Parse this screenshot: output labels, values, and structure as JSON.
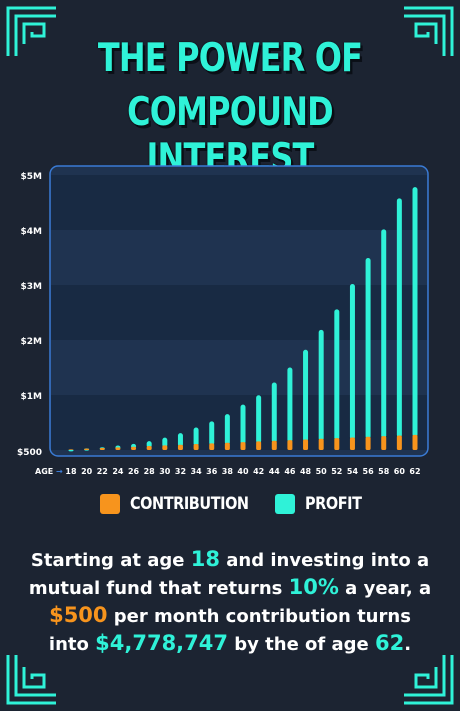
{
  "title": {
    "line1": "THE POWER OF",
    "line2": "COMPOUND INTEREST"
  },
  "colors": {
    "background": "#1c2432",
    "teal": "#2ff2d8",
    "orange": "#f7941d",
    "plot_bg": "#1f3350",
    "plot_bg_alt": "#182a43",
    "border": "#3a7bd5"
  },
  "chart_data": {
    "type": "bar",
    "stacked": true,
    "x_axis_label": "AGE",
    "x_axis_arrow": "→",
    "categories": [
      "18",
      "20",
      "22",
      "24",
      "26",
      "28",
      "30",
      "32",
      "34",
      "36",
      "38",
      "40",
      "42",
      "44",
      "46",
      "48",
      "50",
      "52",
      "54",
      "56",
      "58",
      "60",
      "62"
    ],
    "series": [
      {
        "name": "CONTRIBUTION",
        "color": "#f7941d",
        "values": [
          12000,
          24000,
          36000,
          48000,
          60000,
          72000,
          84000,
          96000,
          108000,
          120000,
          132000,
          144000,
          156000,
          168000,
          180000,
          192000,
          204000,
          216000,
          228000,
          240000,
          252000,
          264000,
          276000
        ]
      },
      {
        "name": "PROFIT",
        "color": "#2ff2d8",
        "values": [
          500,
          5000,
          15000,
          34000,
          52000,
          90000,
          140000,
          210000,
          300000,
          400000,
          520000,
          680000,
          840000,
          1060000,
          1320000,
          1630000,
          1980000,
          2340000,
          2790000,
          3250000,
          3760000,
          4310000,
          4502747
        ]
      }
    ],
    "y_ticks": [
      {
        "value": 500,
        "label": "$500"
      },
      {
        "value": 1000000,
        "label": "$1M"
      },
      {
        "value": 2000000,
        "label": "$2M"
      },
      {
        "value": 3000000,
        "label": "$3M"
      },
      {
        "value": 4000000,
        "label": "$4M"
      },
      {
        "value": 5000000,
        "label": "$5M"
      }
    ],
    "ylim": [
      0,
      5000000
    ],
    "grid": "alternating bands"
  },
  "legend": {
    "contribution": "CONTRIBUTION",
    "profit": "PROFIT"
  },
  "caption": {
    "l1_a": "Starting at age ",
    "l1_age": "18",
    "l1_b": " and investing into a",
    "l2_a": "mutual fund that returns ",
    "l2_rate": "10%",
    "l2_b": " a year, a",
    "l3_amount": "$500",
    "l3_b": " per month contribution turns",
    "l4_a": "into ",
    "l4_total": "$4,778,747",
    "l4_b": " by the of age ",
    "l4_age": "62",
    "l4_c": "."
  }
}
